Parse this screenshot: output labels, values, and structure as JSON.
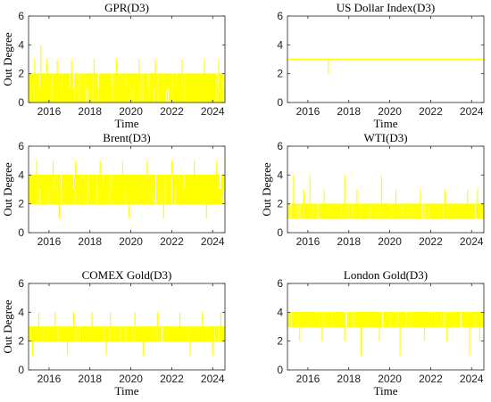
{
  "chart_data": [
    {
      "type": "line",
      "title": "GPR(D3)",
      "xlabel": "Time",
      "ylabel": "Out Degree",
      "xlim": [
        2015.0,
        2024.6
      ],
      "ylim": [
        0,
        6
      ],
      "xticks": [
        "2016",
        "2018",
        "2020",
        "2022",
        "2024"
      ],
      "yticks": [
        "0",
        "2",
        "4",
        "6"
      ],
      "color": "#ffff00",
      "series": [
        {
          "x": [
            2015.0,
            2024.6
          ],
          "typical_range": [
            0,
            2
          ],
          "spikes": [
            {
              "x": 2015.6,
              "y": 4
            },
            {
              "x": 2015.3,
              "y": 3
            },
            {
              "x": 2015.9,
              "y": 3
            },
            {
              "x": 2016.4,
              "y": 3
            },
            {
              "x": 2017.1,
              "y": 3
            },
            {
              "x": 2018.2,
              "y": 3
            },
            {
              "x": 2019.3,
              "y": 3
            },
            {
              "x": 2020.4,
              "y": 3
            },
            {
              "x": 2021.2,
              "y": 3
            },
            {
              "x": 2022.5,
              "y": 3
            },
            {
              "x": 2023.6,
              "y": 3
            },
            {
              "x": 2024.3,
              "y": 3
            }
          ]
        }
      ]
    },
    {
      "type": "line",
      "title": "US Dollar Index(D3)",
      "xlabel": "Time",
      "ylabel": "",
      "xlim": [
        2015.0,
        2024.6
      ],
      "ylim": [
        0,
        6
      ],
      "xticks": [
        "2016",
        "2018",
        "2020",
        "2022",
        "2024"
      ],
      "yticks": [
        "0",
        "2",
        "4",
        "6"
      ],
      "color": "#ffff00",
      "series": [
        {
          "x": [
            2015.0,
            2024.6
          ],
          "typical_range": [
            3,
            3
          ],
          "spikes": [
            {
              "x": 2017.0,
              "y": 2
            }
          ]
        }
      ]
    },
    {
      "type": "line",
      "title": "Brent(D3)",
      "xlabel": "",
      "ylabel": "Out Degree",
      "xlim": [
        2015.0,
        2024.6
      ],
      "ylim": [
        0,
        6
      ],
      "xticks": [
        "2016",
        "2018",
        "2020",
        "2022",
        "2024"
      ],
      "yticks": [
        "0",
        "2",
        "4",
        "6"
      ],
      "color": "#ffff00",
      "series": [
        {
          "x": [
            2015.0,
            2024.6
          ],
          "typical_range": [
            2,
            4
          ],
          "spikes": [
            {
              "x": 2015.4,
              "y": 5
            },
            {
              "x": 2016.2,
              "y": 5
            },
            {
              "x": 2017.3,
              "y": 5
            },
            {
              "x": 2018.5,
              "y": 5
            },
            {
              "x": 2019.6,
              "y": 5
            },
            {
              "x": 2020.8,
              "y": 5
            },
            {
              "x": 2022.0,
              "y": 5
            },
            {
              "x": 2023.1,
              "y": 5
            },
            {
              "x": 2024.2,
              "y": 5
            },
            {
              "x": 2016.5,
              "y": 1
            },
            {
              "x": 2019.9,
              "y": 1
            },
            {
              "x": 2021.6,
              "y": 1
            },
            {
              "x": 2023.7,
              "y": 1
            }
          ]
        }
      ]
    },
    {
      "type": "line",
      "title": "WTI(D3)",
      "xlabel": "",
      "ylabel": "Out Degree",
      "xlim": [
        2015.0,
        2024.6
      ],
      "ylim": [
        0,
        6
      ],
      "xticks": [
        "2016",
        "2018",
        "2020",
        "2022",
        "2024"
      ],
      "yticks": [
        "0",
        "2",
        "4",
        "6"
      ],
      "color": "#ffff00",
      "series": [
        {
          "x": [
            2015.0,
            2024.6
          ],
          "typical_range": [
            1,
            2
          ],
          "spikes": [
            {
              "x": 2015.3,
              "y": 4
            },
            {
              "x": 2016.1,
              "y": 4
            },
            {
              "x": 2017.8,
              "y": 4
            },
            {
              "x": 2019.6,
              "y": 4
            },
            {
              "x": 2015.8,
              "y": 3
            },
            {
              "x": 2016.8,
              "y": 3
            },
            {
              "x": 2018.4,
              "y": 3
            },
            {
              "x": 2020.3,
              "y": 3
            },
            {
              "x": 2021.5,
              "y": 3
            },
            {
              "x": 2022.7,
              "y": 3
            },
            {
              "x": 2023.8,
              "y": 3
            },
            {
              "x": 2024.3,
              "y": 3
            }
          ]
        }
      ]
    },
    {
      "type": "line",
      "title": "COMEX Gold(D3)",
      "xlabel": "Time",
      "ylabel": "Out Degree",
      "xlim": [
        2015.0,
        2024.6
      ],
      "ylim": [
        0,
        6
      ],
      "xticks": [
        "2016",
        "2018",
        "2020",
        "2022",
        "2024"
      ],
      "yticks": [
        "0",
        "2",
        "4",
        "6"
      ],
      "color": "#ffff00",
      "series": [
        {
          "x": [
            2015.0,
            2024.6
          ],
          "typical_range": [
            2,
            3
          ],
          "spikes": [
            {
              "x": 2015.5,
              "y": 4
            },
            {
              "x": 2016.3,
              "y": 4
            },
            {
              "x": 2017.2,
              "y": 4
            },
            {
              "x": 2018.1,
              "y": 4
            },
            {
              "x": 2019.0,
              "y": 4
            },
            {
              "x": 2020.2,
              "y": 4
            },
            {
              "x": 2021.3,
              "y": 4
            },
            {
              "x": 2022.4,
              "y": 4
            },
            {
              "x": 2023.5,
              "y": 4
            },
            {
              "x": 2024.4,
              "y": 4
            },
            {
              "x": 2015.2,
              "y": 1
            },
            {
              "x": 2016.9,
              "y": 1
            },
            {
              "x": 2018.8,
              "y": 1
            },
            {
              "x": 2020.6,
              "y": 1
            },
            {
              "x": 2022.9,
              "y": 1
            },
            {
              "x": 2024.0,
              "y": 1
            }
          ]
        }
      ]
    },
    {
      "type": "line",
      "title": "London Gold(D3)",
      "xlabel": "Time",
      "ylabel": "",
      "xlim": [
        2015.0,
        2024.6
      ],
      "ylim": [
        0,
        6
      ],
      "xticks": [
        "2016",
        "2018",
        "2020",
        "2022",
        "2024"
      ],
      "yticks": [
        "0",
        "2",
        "4",
        "6"
      ],
      "color": "#ffff00",
      "series": [
        {
          "x": [
            2015.0,
            2024.6
          ],
          "typical_range": [
            3,
            4
          ],
          "spikes": [
            {
              "x": 2015.6,
              "y": 2
            },
            {
              "x": 2016.7,
              "y": 2
            },
            {
              "x": 2017.8,
              "y": 2
            },
            {
              "x": 2018.6,
              "y": 1
            },
            {
              "x": 2019.5,
              "y": 2
            },
            {
              "x": 2020.5,
              "y": 1
            },
            {
              "x": 2021.7,
              "y": 2
            },
            {
              "x": 2022.8,
              "y": 2
            },
            {
              "x": 2023.9,
              "y": 1
            },
            {
              "x": 2024.4,
              "y": 2
            }
          ]
        }
      ]
    }
  ]
}
